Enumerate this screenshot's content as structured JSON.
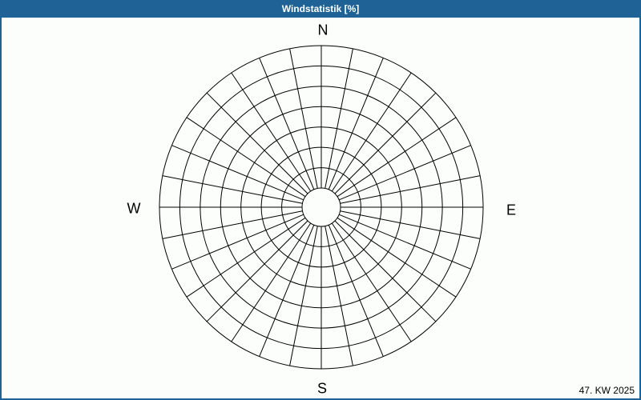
{
  "window": {
    "title": "Windstatistik [%]",
    "title_bar_color": "#1e6296",
    "border_color": "#1e6296",
    "background_color": "#fcfefb"
  },
  "compass": {
    "north": "N",
    "east": "E",
    "south": "S",
    "west": "W"
  },
  "footer": {
    "week_label": "47. KW 2025"
  },
  "chart_data": {
    "type": "windrose",
    "title": "Windstatistik [%]",
    "radial_unit": "%",
    "sectors": 32,
    "sector_angle_deg": 11.25,
    "ring_count": 8,
    "center_x": 399,
    "center_y": 257,
    "inner_radius": 24,
    "outer_radius": 202,
    "grid": true,
    "ring_tick_labels": [],
    "series": [],
    "direction_labels": [
      "N",
      "E",
      "S",
      "W"
    ]
  }
}
